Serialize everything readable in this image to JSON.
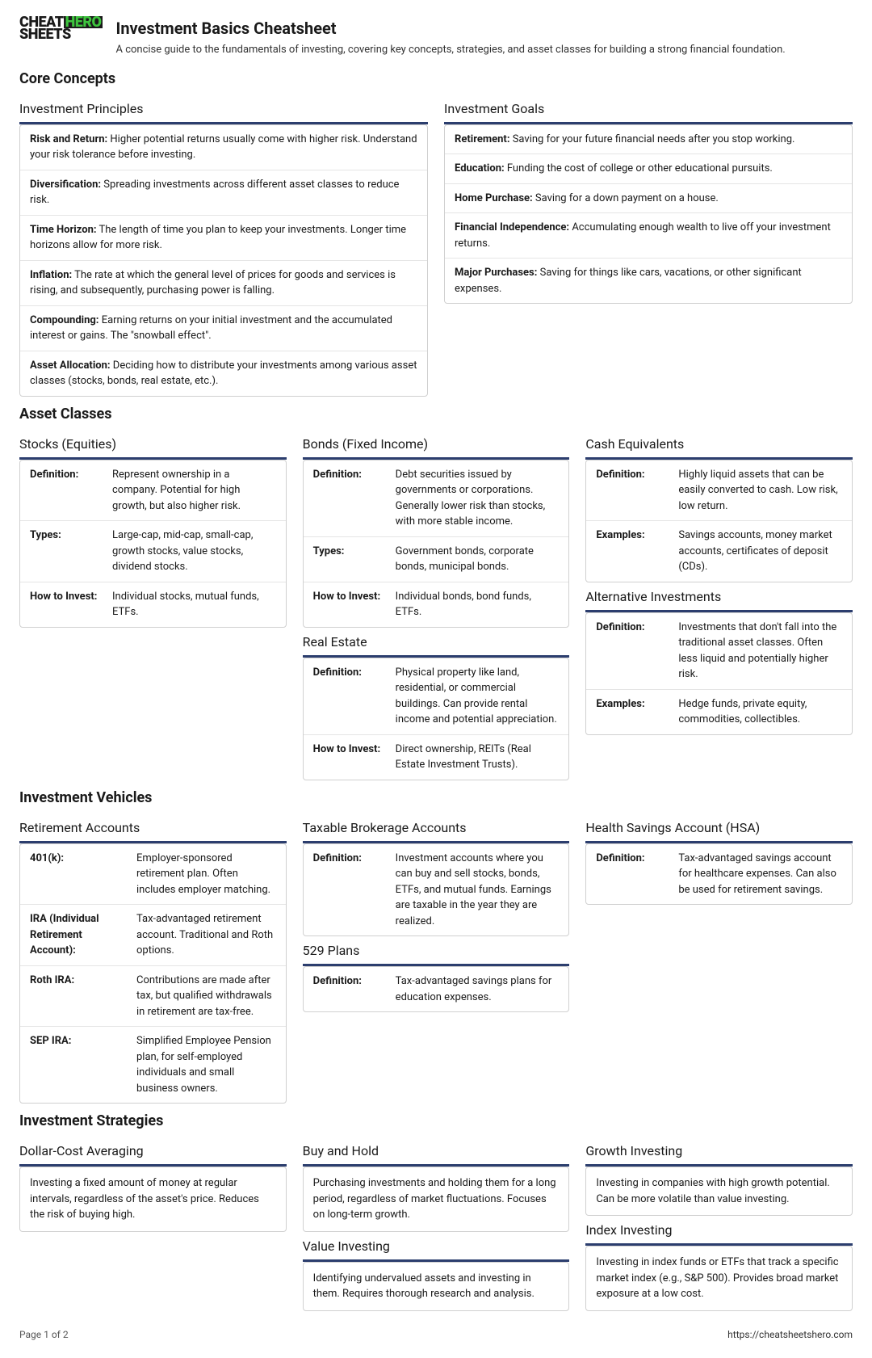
{
  "brand": {
    "cheat": "CHEAT",
    "sheets": "SHEETS",
    "hero": "HERO"
  },
  "title": "Investment Basics Cheatsheet",
  "subtitle": "A concise guide to the fundamentals of investing, covering key concepts, strategies, and asset classes for building a strong financial foundation.",
  "colors": {
    "accent": "#2c3e6e",
    "green": "#3dc43d"
  },
  "sections": {
    "core": {
      "heading": "Core Concepts",
      "principles": {
        "heading": "Investment Principles",
        "items": [
          {
            "term": "Risk and Return:",
            "text": " Higher potential returns usually come with higher risk. Understand your risk tolerance before investing."
          },
          {
            "term": "Diversification:",
            "text": " Spreading investments across different asset classes to reduce risk."
          },
          {
            "term": "Time Horizon:",
            "text": " The length of time you plan to keep your investments. Longer time horizons allow for more risk."
          },
          {
            "term": "Inflation:",
            "text": " The rate at which the general level of prices for goods and services is rising, and subsequently, purchasing power is falling."
          },
          {
            "term": "Compounding:",
            "text": " Earning returns on your initial investment and the accumulated interest or gains. The \"snowball effect\"."
          },
          {
            "term": "Asset Allocation:",
            "text": " Deciding how to distribute your investments among various asset classes (stocks, bonds, real estate, etc.)."
          }
        ]
      },
      "goals": {
        "heading": "Investment Goals",
        "items": [
          {
            "term": "Retirement:",
            "text": " Saving for your future financial needs after you stop working."
          },
          {
            "term": "Education:",
            "text": " Funding the cost of college or other educational pursuits."
          },
          {
            "term": "Home Purchase:",
            "text": " Saving for a down payment on a house."
          },
          {
            "term": "Financial Independence:",
            "text": " Accumulating enough wealth to live off your investment returns."
          },
          {
            "term": "Major Purchases:",
            "text": " Saving for things like cars, vacations, or other significant expenses."
          }
        ]
      }
    },
    "asset": {
      "heading": "Asset Classes",
      "stocks": {
        "heading": "Stocks (Equities)",
        "rows": [
          {
            "label": "Definition:",
            "value": "Represent ownership in a company. Potential for high growth, but also higher risk."
          },
          {
            "label": "Types:",
            "value": "Large-cap, mid-cap, small-cap, growth stocks, value stocks, dividend stocks."
          },
          {
            "label": "How to Invest:",
            "value": "Individual stocks, mutual funds, ETFs."
          }
        ]
      },
      "bonds": {
        "heading": "Bonds (Fixed Income)",
        "rows": [
          {
            "label": "Definition:",
            "value": "Debt securities issued by governments or corporations. Generally lower risk than stocks, with more stable income."
          },
          {
            "label": "Types:",
            "value": "Government bonds, corporate bonds, municipal bonds."
          },
          {
            "label": "How to Invest:",
            "value": "Individual bonds, bond funds, ETFs."
          }
        ]
      },
      "realestate": {
        "heading": "Real Estate",
        "rows": [
          {
            "label": "Definition:",
            "value": "Physical property like land, residential, or commercial buildings. Can provide rental income and potential appreciation."
          },
          {
            "label": "How to Invest:",
            "value": "Direct ownership, REITs (Real Estate Investment Trusts)."
          }
        ]
      },
      "cash": {
        "heading": "Cash Equivalents",
        "rows": [
          {
            "label": "Definition:",
            "value": "Highly liquid assets that can be easily converted to cash. Low risk, low return."
          },
          {
            "label": "Examples:",
            "value": "Savings accounts, money market accounts, certificates of deposit (CDs)."
          }
        ]
      },
      "alt": {
        "heading": "Alternative Investments",
        "rows": [
          {
            "label": "Definition:",
            "value": "Investments that don't fall into the traditional asset classes. Often less liquid and potentially higher risk."
          },
          {
            "label": "Examples:",
            "value": "Hedge funds, private equity, commodities, collectibles."
          }
        ]
      }
    },
    "vehicles": {
      "heading": "Investment Vehicles",
      "retirement": {
        "heading": "Retirement Accounts",
        "rows": [
          {
            "label": "401(k):",
            "value": "Employer-sponsored retirement plan. Often includes employer matching."
          },
          {
            "label": "IRA (Individual Retirement Account):",
            "value": "Tax-advantaged retirement account. Traditional and Roth options."
          },
          {
            "label": "Roth IRA:",
            "value": "Contributions are made after tax, but qualified withdrawals in retirement are tax-free."
          },
          {
            "label": "SEP IRA:",
            "value": "Simplified Employee Pension plan, for self-employed individuals and small business owners."
          }
        ]
      },
      "brokerage": {
        "heading": "Taxable Brokerage Accounts",
        "rows": [
          {
            "label": "Definition:",
            "value": "Investment accounts where you can buy and sell stocks, bonds, ETFs, and mutual funds. Earnings are taxable in the year they are realized."
          }
        ]
      },
      "plan529": {
        "heading": "529 Plans",
        "rows": [
          {
            "label": "Definition:",
            "value": "Tax-advantaged savings plans for education expenses."
          }
        ]
      },
      "hsa": {
        "heading": "Health Savings Account (HSA)",
        "rows": [
          {
            "label": "Definition:",
            "value": "Tax-advantaged savings account for healthcare expenses. Can also be used for retirement savings."
          }
        ]
      }
    },
    "strategies": {
      "heading": "Investment Strategies",
      "dca": {
        "heading": "Dollar-Cost Averaging",
        "text": "Investing a fixed amount of money at regular intervals, regardless of the asset's price. Reduces the risk of buying high."
      },
      "buyhold": {
        "heading": "Buy and Hold",
        "text": "Purchasing investments and holding them for a long period, regardless of market fluctuations. Focuses on long-term growth."
      },
      "value": {
        "heading": "Value Investing",
        "text": "Identifying undervalued assets and investing in them. Requires thorough research and analysis."
      },
      "growth": {
        "heading": "Growth Investing",
        "text": "Investing in companies with high growth potential. Can be more volatile than value investing."
      },
      "index": {
        "heading": "Index Investing",
        "text": "Investing in index funds or ETFs that track a specific market index (e.g., S&P 500). Provides broad market exposure at a low cost."
      }
    }
  },
  "footer": {
    "page": "Page 1 of 2",
    "url": "https://cheatsheetshero.com"
  }
}
